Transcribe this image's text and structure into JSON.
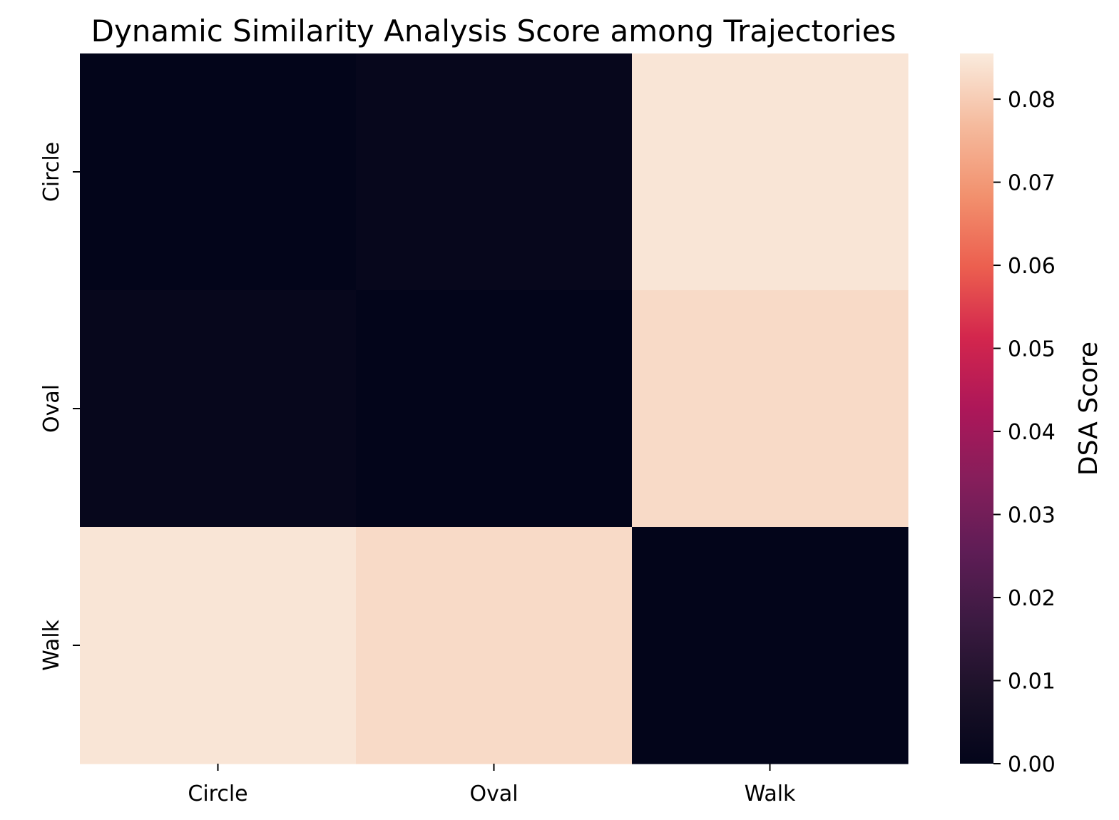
{
  "chart_data": {
    "type": "heatmap",
    "title": "Dynamic Similarity Analysis Score among Trajectories",
    "x_categories": [
      "Circle",
      "Oval",
      "Walk"
    ],
    "y_categories": [
      "Circle",
      "Oval",
      "Walk"
    ],
    "values": [
      [
        0.0,
        0.0015,
        0.0845
      ],
      [
        0.0015,
        0.0,
        0.0825
      ],
      [
        0.0845,
        0.0825,
        0.0
      ]
    ],
    "colorbar": {
      "label": "DSA Score",
      "range": [
        0.0,
        0.0855
      ],
      "ticks": [
        0.0,
        0.01,
        0.02,
        0.03,
        0.04,
        0.05,
        0.06,
        0.07,
        0.08
      ],
      "tick_labels": [
        "0.00",
        "0.01",
        "0.02",
        "0.03",
        "0.04",
        "0.05",
        "0.06",
        "0.07",
        "0.08"
      ]
    },
    "colormap": "rocket",
    "grid": false
  }
}
